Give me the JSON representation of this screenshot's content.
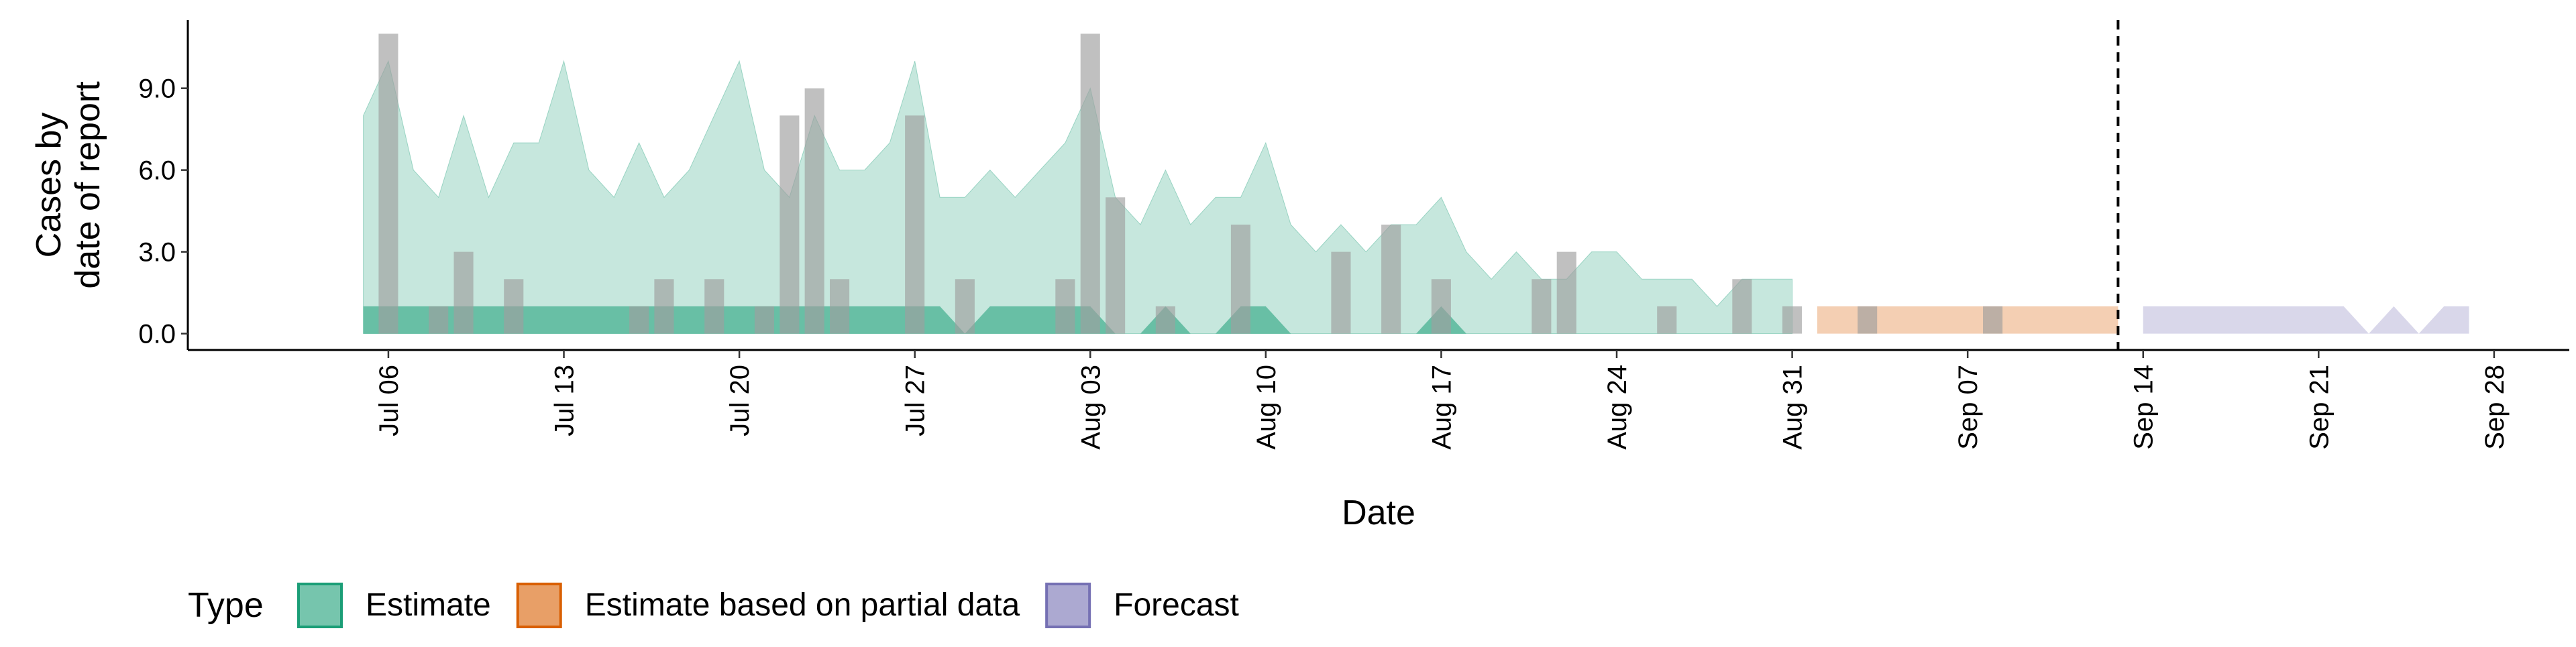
{
  "chart_data": {
    "type": "area",
    "xlabel": "Date",
    "ylabel_lines": [
      "Cases by",
      "date of report"
    ],
    "ylim": [
      -0.6,
      11.5
    ],
    "yticks": [
      0,
      3,
      6,
      9
    ],
    "ytick_labels": [
      "0.0",
      "3.0",
      "6.0",
      "9.0"
    ],
    "x_range": [
      "2020-06-28",
      "2020-10-01"
    ],
    "xticks": [
      "2020-07-06",
      "2020-07-13",
      "2020-07-20",
      "2020-07-27",
      "2020-08-03",
      "2020-08-10",
      "2020-08-17",
      "2020-08-24",
      "2020-08-31",
      "2020-09-07",
      "2020-09-14",
      "2020-09-21",
      "2020-09-28"
    ],
    "xtick_labels": [
      "Jul 06",
      "Jul 13",
      "Jul 20",
      "Jul 27",
      "Aug 03",
      "Aug 10",
      "Aug 17",
      "Aug 24",
      "Aug 31",
      "Sep 07",
      "Sep 14",
      "Sep 21",
      "Sep 28"
    ],
    "forecast_date": "2020-09-13",
    "legend": {
      "title": "Type",
      "position": "bottom",
      "entries": [
        {
          "label": "Estimate",
          "color": "#1b9e77"
        },
        {
          "label": "Estimate based on partial data",
          "color": "#d95f02"
        },
        {
          "label": "Forecast",
          "color": "#7570b3"
        }
      ]
    },
    "bars": {
      "color": "#9e9e9e",
      "x": [
        "2020-07-06",
        "2020-07-08",
        "2020-07-09",
        "2020-07-11",
        "2020-07-16",
        "2020-07-17",
        "2020-07-19",
        "2020-07-21",
        "2020-07-22",
        "2020-07-23",
        "2020-07-24",
        "2020-07-27",
        "2020-07-29",
        "2020-08-02",
        "2020-08-03",
        "2020-08-04",
        "2020-08-06",
        "2020-08-09",
        "2020-08-13",
        "2020-08-15",
        "2020-08-17",
        "2020-08-21",
        "2020-08-22",
        "2020-08-26",
        "2020-08-29",
        "2020-08-31",
        "2020-09-03",
        "2020-09-08"
      ],
      "values": [
        11,
        1,
        3,
        2,
        1,
        2,
        2,
        1,
        8,
        9,
        2,
        8,
        2,
        2,
        11,
        5,
        1,
        4,
        3,
        4,
        2,
        2,
        3,
        1,
        2,
        1,
        1,
        1
      ]
    },
    "series": [
      {
        "name": "Estimate",
        "color": "#1b9e77",
        "x": [
          "2020-07-05",
          "2020-07-06",
          "2020-07-07",
          "2020-07-08",
          "2020-07-09",
          "2020-07-10",
          "2020-07-11",
          "2020-07-12",
          "2020-07-13",
          "2020-07-14",
          "2020-07-15",
          "2020-07-16",
          "2020-07-17",
          "2020-07-18",
          "2020-07-19",
          "2020-07-20",
          "2020-07-21",
          "2020-07-22",
          "2020-07-23",
          "2020-07-24",
          "2020-07-25",
          "2020-07-26",
          "2020-07-27",
          "2020-07-28",
          "2020-07-29",
          "2020-07-30",
          "2020-07-31",
          "2020-08-01",
          "2020-08-02",
          "2020-08-03",
          "2020-08-04",
          "2020-08-05",
          "2020-08-06",
          "2020-08-07",
          "2020-08-08",
          "2020-08-09",
          "2020-08-10",
          "2020-08-11",
          "2020-08-12",
          "2020-08-13",
          "2020-08-14",
          "2020-08-15",
          "2020-08-16",
          "2020-08-17",
          "2020-08-18",
          "2020-08-19",
          "2020-08-20",
          "2020-08-21",
          "2020-08-22",
          "2020-08-23",
          "2020-08-24",
          "2020-08-25",
          "2020-08-26",
          "2020-08-27",
          "2020-08-28",
          "2020-08-29",
          "2020-08-30",
          "2020-08-31"
        ],
        "upper": [
          8,
          10,
          6,
          5,
          8,
          5,
          7,
          7,
          10,
          6,
          5,
          7,
          5,
          6,
          8,
          10,
          6,
          5,
          8,
          6,
          6,
          7,
          10,
          5,
          5,
          6,
          5,
          6,
          7,
          9,
          5,
          4,
          6,
          4,
          5,
          5,
          7,
          4,
          3,
          4,
          3,
          4,
          4,
          5,
          3,
          2,
          3,
          2,
          2,
          3,
          3,
          2,
          2,
          2,
          1,
          2,
          2,
          2
        ],
        "lower": [
          0,
          0,
          0,
          0,
          0,
          0,
          0,
          0,
          0,
          0,
          0,
          0,
          0,
          0,
          0,
          0,
          0,
          0,
          0,
          0,
          0,
          0,
          0,
          0,
          0,
          0,
          0,
          0,
          0,
          0,
          0,
          0,
          0,
          0,
          0,
          0,
          0,
          0,
          0,
          0,
          0,
          0,
          0,
          0,
          0,
          0,
          0,
          0,
          0,
          0,
          0,
          0,
          0,
          0,
          0,
          0,
          0,
          0
        ],
        "inner_upper": [
          1,
          1,
          1,
          1,
          1,
          1,
          1,
          1,
          1,
          1,
          1,
          1,
          1,
          1,
          1,
          1,
          1,
          1,
          1,
          1,
          1,
          1,
          1,
          1,
          0,
          1,
          1,
          1,
          1,
          1,
          0,
          0,
          1,
          0,
          0,
          1,
          1,
          0,
          0,
          0,
          0,
          0,
          0,
          1,
          0,
          0,
          0,
          0,
          0,
          0,
          0,
          0,
          0,
          0,
          0,
          0,
          0,
          0
        ],
        "inner_lower": [
          0,
          0,
          0,
          0,
          0,
          0,
          0,
          0,
          0,
          0,
          0,
          0,
          0,
          0,
          0,
          0,
          0,
          0,
          0,
          0,
          0,
          0,
          0,
          0,
          0,
          0,
          0,
          0,
          0,
          0,
          0,
          0,
          0,
          0,
          0,
          0,
          0,
          0,
          0,
          0,
          0,
          0,
          0,
          0,
          0,
          0,
          0,
          0,
          0,
          0,
          0,
          0,
          0,
          0,
          0,
          0,
          0,
          0
        ]
      },
      {
        "name": "Estimate based on partial data",
        "color": "#d95f02",
        "x": [
          "2020-09-01",
          "2020-09-02",
          "2020-09-03",
          "2020-09-04",
          "2020-09-05",
          "2020-09-06",
          "2020-09-07",
          "2020-09-08",
          "2020-09-09",
          "2020-09-10",
          "2020-09-11",
          "2020-09-12",
          "2020-09-13"
        ],
        "upper": [
          1,
          1,
          1,
          1,
          1,
          1,
          1,
          1,
          1,
          1,
          1,
          1,
          1
        ],
        "lower": [
          0,
          0,
          0,
          0,
          0,
          0,
          0,
          0,
          0,
          0,
          0,
          0,
          0
        ]
      },
      {
        "name": "Forecast",
        "color": "#7570b3",
        "x": [
          "2020-09-14",
          "2020-09-15",
          "2020-09-16",
          "2020-09-17",
          "2020-09-18",
          "2020-09-19",
          "2020-09-20",
          "2020-09-21",
          "2020-09-22",
          "2020-09-23",
          "2020-09-24",
          "2020-09-25",
          "2020-09-26",
          "2020-09-27"
        ],
        "upper": [
          1,
          1,
          1,
          1,
          1,
          1,
          1,
          1,
          1,
          0,
          1,
          0,
          1,
          1
        ],
        "lower": [
          0,
          0,
          0,
          0,
          0,
          0,
          0,
          0,
          0,
          0,
          0,
          0,
          0,
          0
        ]
      }
    ]
  }
}
